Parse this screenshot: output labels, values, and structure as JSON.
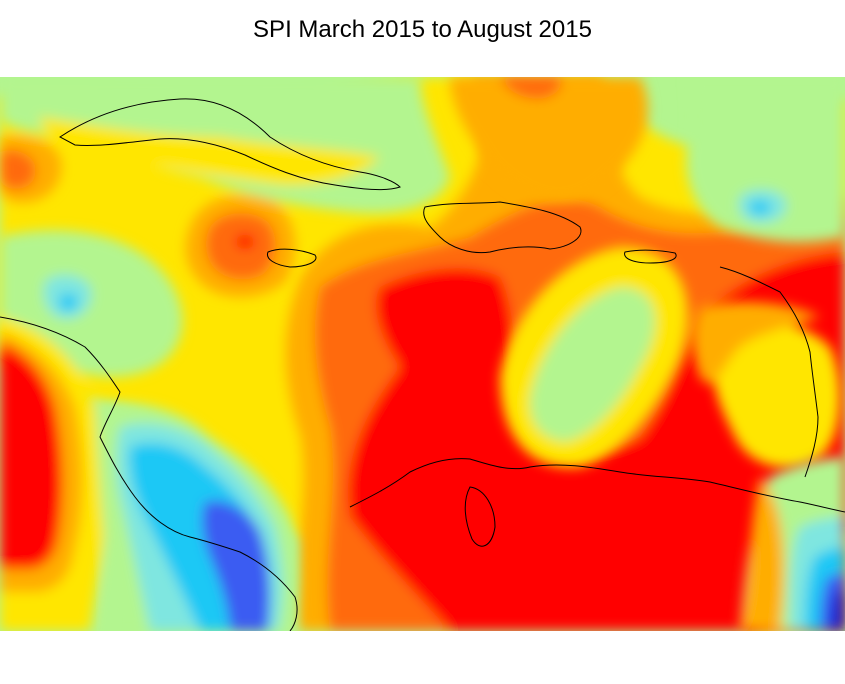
{
  "title": "SPI March 2015 to August 2015",
  "map": {
    "variable": "SPI",
    "region": "Caribbean",
    "background_class": "near-normal",
    "palette": {
      "extreme_wet": "#1a1acc",
      "severe_wet": "#3a5cf2",
      "moderate_wet": "#1ec8f5",
      "mild_wet": "#7fe6e0",
      "near_normal": "#b3f58f",
      "mild_dry": "#ffe600",
      "moderate_dry": "#ffad00",
      "severe_dry": "#ff6a0a",
      "extreme_dry": "#ff0000",
      "coastline": "#000000"
    }
  }
}
